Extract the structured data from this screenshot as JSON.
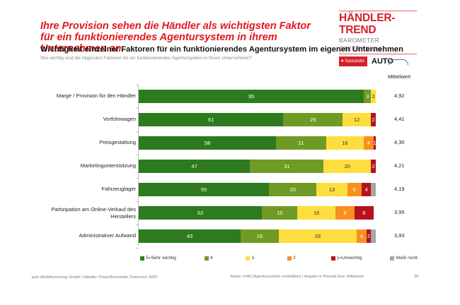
{
  "headline": "Ihre Provision sehen die Händler als wichtigsten Faktor für ein funktionierendes Agentursystem in ihrem Unternehmen an.",
  "logo": {
    "brand": "HÄNDLER-TREND",
    "sub": "BAROMETER ÖSTERREICH",
    "partner1": "Santander",
    "partner1_sub": "CONSUMER BANK",
    "partner2": "AUTO"
  },
  "subtitle": "Wichtigkeit einzelner Faktoren für ein funktionierendes Agentursystem im eigenen Unternehmen",
  "question": "Wie wichtig sind die folgenden Faktoren für ein funktionierendes Agentursystem in Ihrem Unternehmen?",
  "mittelwert_header": "Mittelwert",
  "footer": {
    "left": "puls Marktforschung GmbH | Händler-Trend-Barometer Österreich 2020",
    "right": "Basis: n=60 (Agentursystem vorstellbar)  | Angabe in Prozent bzw. Mittelwert",
    "page": "30"
  },
  "chart_data": {
    "type": "bar",
    "orientation": "horizontal",
    "stacked": true,
    "title": "Wichtigkeit einzelner Faktoren für ein funktionierendes Agentursystem im eigenen Unternehmen",
    "xlabel": "",
    "ylabel": "",
    "xlim": [
      0,
      100
    ],
    "unit": "percent",
    "legend_position": "bottom",
    "categories": [
      "Marge / Provision für den Händler",
      "Vorführwagen",
      "Preisgestaltung",
      "Marketingunterstützung",
      "Fahrzeuglager",
      "Partizipation am Online-Verkauf des Herstellers",
      "Administrativer Aufwand"
    ],
    "series": [
      {
        "name": "5=Sehr wichtig",
        "color": "#2e7a1f",
        "label_color": "#ffffff",
        "values": [
          95,
          61,
          58,
          47,
          55,
          52,
          43
        ]
      },
      {
        "name": "4",
        "color": "#6f9a24",
        "label_color": "#ffffff",
        "values": [
          3,
          25,
          21,
          31,
          20,
          15,
          16
        ]
      },
      {
        "name": "3",
        "color": "#fede3e",
        "label_color": "#333333",
        "values": [
          2,
          12,
          16,
          20,
          13,
          16,
          33
        ]
      },
      {
        "name": "2",
        "color": "#f7901e",
        "label_color": "#ffffff",
        "values": [
          0,
          0,
          4,
          0,
          6,
          8,
          4
        ]
      },
      {
        "name": "1=Unwichtig",
        "color": "#b5121b",
        "label_color": "#ffffff",
        "values": [
          0,
          2,
          1,
          2,
          4,
          8,
          2
        ]
      },
      {
        "name": "Weiß nicht",
        "color": "#a6a6a6",
        "label_color": "#ffffff",
        "values": [
          0,
          0,
          0,
          0,
          2,
          0,
          2
        ]
      }
    ],
    "hide_labels_below": 1,
    "hide_series_labels": [
      "Weiß nicht"
    ],
    "mittelwert": [
      "4,92",
      "4,41",
      "4,30",
      "4,21",
      "4,19",
      "3,95",
      "3,93"
    ]
  }
}
